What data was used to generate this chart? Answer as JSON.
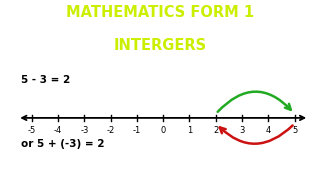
{
  "title_line1": "MATHEMATICS FORM 1",
  "title_line2": "INTERGERS",
  "title_color": "#ccee00",
  "title_fontsize": 10.5,
  "equation1": "5 - 3 = 2",
  "equation2": "or 5 + (-3) = 2",
  "eq1_fontsize": 7.5,
  "eq2_fontsize": 7.5,
  "eq_color": "#000000",
  "number_line_min": -5,
  "number_line_max": 5,
  "tick_labels": [
    -5,
    -4,
    -3,
    -2,
    -1,
    0,
    1,
    2,
    3,
    4,
    5
  ],
  "green_color": "#22aa22",
  "red_color": "#cc1111",
  "background_color": "#ffffff"
}
